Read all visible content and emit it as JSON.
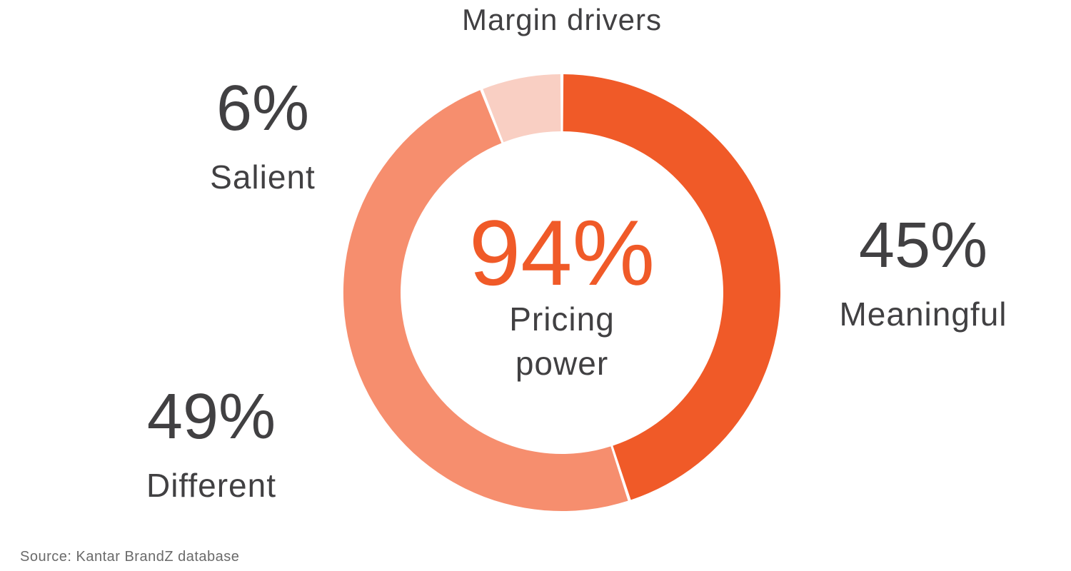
{
  "title": "Margin drivers",
  "donut_center": {
    "value": "94%",
    "label_line1": "Pricing",
    "label_line2": "power"
  },
  "callouts": {
    "salient": {
      "value": "6%",
      "label": "Salient"
    },
    "meaningful": {
      "value": "45%",
      "label": "Meaningful"
    },
    "different": {
      "value": "49%",
      "label": "Different"
    }
  },
  "source": "Source: Kantar BrandZ database",
  "colors": {
    "meaningful": "#F05A28",
    "different": "#F68E6E",
    "salient": "#F9CFC3",
    "accent_orange": "#F05A28",
    "text_dark": "#414042",
    "text_source": "#6A6A6A"
  },
  "chart_data": {
    "type": "pie",
    "subtype": "donut",
    "title": "Margin drivers",
    "categories": [
      "Meaningful",
      "Different",
      "Salient"
    ],
    "values": [
      45,
      49,
      6
    ],
    "colors": [
      "#F05A28",
      "#F68E6E",
      "#F9CFC3"
    ],
    "start_angle_deg": 0,
    "direction": "clockwise",
    "gap_deg": 0.8,
    "inner_radius_ratio": 0.74,
    "center_text": {
      "value": "94%",
      "label": "Pricing power"
    },
    "labels_position": "callouts-around-chart",
    "legend": false,
    "source": "Source: Kantar BrandZ database"
  }
}
